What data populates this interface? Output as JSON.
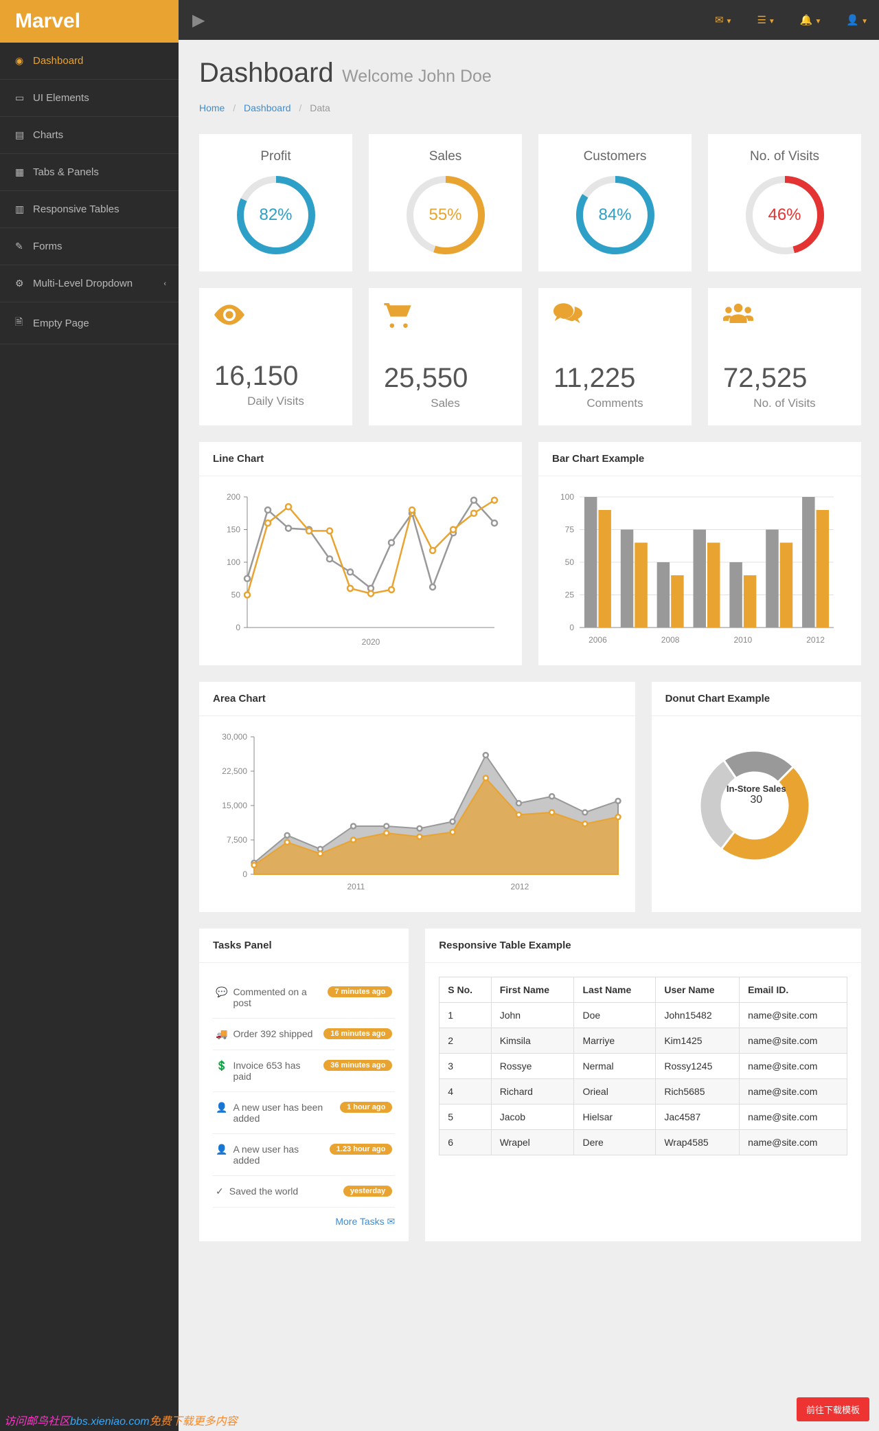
{
  "brand": "Marvel",
  "nav": [
    {
      "label": "Dashboard",
      "icon": "◉",
      "name": "nav-dashboard"
    },
    {
      "label": "UI Elements",
      "icon": "▭",
      "name": "nav-ui-elements"
    },
    {
      "label": "Charts",
      "icon": "▤",
      "name": "nav-charts"
    },
    {
      "label": "Tabs & Panels",
      "icon": "▦",
      "name": "nav-tabs-panels"
    },
    {
      "label": "Responsive Tables",
      "icon": "▥",
      "name": "nav-responsive-tables"
    },
    {
      "label": "Forms",
      "icon": "✎",
      "name": "nav-forms"
    },
    {
      "label": "Multi-Level Dropdown",
      "icon": "⚙",
      "name": "nav-multi-level",
      "chev": true
    },
    {
      "label": "Empty Page",
      "icon": "🗎",
      "name": "nav-empty-page"
    }
  ],
  "page": {
    "title": "Dashboard",
    "subtitle": "Welcome John Doe"
  },
  "breadcrumb": {
    "a": "Home",
    "b": "Dashboard",
    "c": "Data"
  },
  "kpis": [
    {
      "title": "Profit",
      "pct": 82,
      "color": "#2ea0c7",
      "name": "kpi-profit"
    },
    {
      "title": "Sales",
      "pct": 55,
      "color": "#e8a331",
      "name": "kpi-sales"
    },
    {
      "title": "Customers",
      "pct": 84,
      "color": "#2ea0c7",
      "name": "kpi-customers"
    },
    {
      "title": "No. of Visits",
      "pct": 46,
      "color": "#e33333",
      "name": "kpi-visits"
    }
  ],
  "stats": [
    {
      "icon": "eye-icon",
      "value": "16,150",
      "label": "Daily Visits",
      "name": "stat-visits"
    },
    {
      "icon": "cart-icon",
      "value": "25,550",
      "label": "Sales",
      "name": "stat-sales"
    },
    {
      "icon": "comments-icon",
      "value": "11,225",
      "label": "Comments",
      "name": "stat-comments"
    },
    {
      "icon": "users-icon",
      "value": "72,525",
      "label": "No. of Visits",
      "name": "stat-novisits"
    }
  ],
  "line_chart": {
    "title": "Line Chart",
    "ylabels": [
      "0",
      "50",
      "100",
      "150",
      "200"
    ],
    "ylim": [
      0,
      200
    ],
    "xlabel": "2020",
    "series": [
      {
        "color": "#999999",
        "data": [
          75,
          180,
          152,
          150,
          105,
          85,
          60,
          130,
          175,
          62,
          145,
          195,
          160
        ]
      },
      {
        "color": "#e8a331",
        "data": [
          50,
          160,
          185,
          148,
          148,
          60,
          52,
          58,
          180,
          118,
          150,
          175,
          195
        ]
      }
    ]
  },
  "bar_chart": {
    "title": "Bar Chart Example",
    "ylabels": [
      "0",
      "25",
      "50",
      "75",
      "100"
    ],
    "ylim": [
      0,
      100
    ],
    "xlabels": [
      "2006",
      "2008",
      "2010",
      "2012"
    ],
    "series": [
      {
        "color": "#999999",
        "data": [
          100,
          75,
          50,
          75,
          50,
          75,
          100
        ]
      },
      {
        "color": "#e8a331",
        "data": [
          90,
          65,
          40,
          65,
          40,
          65,
          90
        ]
      }
    ]
  },
  "area_chart": {
    "title": "Area Chart",
    "ylabels": [
      "0",
      "7,500",
      "15,000",
      "22,500",
      "30,000"
    ],
    "ylim": [
      0,
      30000
    ],
    "xlabels": [
      "2011",
      "2012"
    ],
    "series": [
      {
        "color": "#e8a331",
        "fill": "#e8a331",
        "opacity": 0.7,
        "data": [
          2000,
          7000,
          4500,
          7500,
          9000,
          8200,
          9200,
          21000,
          13000,
          13500,
          11000,
          12500
        ],
        "labelx": 0
      },
      {
        "color": "#999999",
        "fill": "#999999",
        "opacity": 0.55,
        "data": [
          2500,
          8500,
          5500,
          10500,
          10500,
          10000,
          11500,
          26000,
          15500,
          17000,
          13500,
          16000
        ],
        "labelx": 0
      }
    ]
  },
  "donut_chart": {
    "title": "Donut Chart Example",
    "center_l1": "In-Store Sales",
    "center_l2": "30",
    "slices": [
      {
        "color": "#999999",
        "value": 22
      },
      {
        "color": "#e8a331",
        "value": 48
      },
      {
        "color": "#cccccc",
        "value": 30
      }
    ]
  },
  "tasks": {
    "title": "Tasks Panel",
    "items": [
      {
        "icon": "💬",
        "text": "Commented on a post",
        "badge": "7 minutes ago"
      },
      {
        "icon": "🚚",
        "text": "Order 392 shipped",
        "badge": "16 minutes ago"
      },
      {
        "icon": "💲",
        "text": "Invoice 653 has paid",
        "badge": "36 minutes ago"
      },
      {
        "icon": "👤",
        "text": "A new user has been added",
        "badge": "1 hour ago"
      },
      {
        "icon": "👤",
        "text": "A new user has added",
        "badge": "1.23 hour ago"
      },
      {
        "icon": "✓",
        "text": "Saved the world",
        "badge": "yesterday"
      }
    ],
    "more": "More Tasks"
  },
  "table": {
    "title": "Responsive Table Example",
    "columns": [
      "S No.",
      "First Name",
      "Last Name",
      "User Name",
      "Email ID."
    ],
    "rows": [
      [
        "1",
        "John",
        "Doe",
        "John15482",
        "name@site.com"
      ],
      [
        "2",
        "Kimsila",
        "Marriye",
        "Kim1425",
        "name@site.com"
      ],
      [
        "3",
        "Rossye",
        "Nermal",
        "Rossy1245",
        "name@site.com"
      ],
      [
        "4",
        "Richard",
        "Orieal",
        "Rich5685",
        "name@site.com"
      ],
      [
        "5",
        "Jacob",
        "Hielsar",
        "Jac4587",
        "name@site.com"
      ],
      [
        "6",
        "Wrapel",
        "Dere",
        "Wrap4585",
        "name@site.com"
      ]
    ]
  },
  "float_btn": "前往下载模板",
  "stamp": {
    "a": "访问邮鸟社区",
    "b": "bbs.xieniao.com",
    "c": "免费下载更多内容"
  }
}
